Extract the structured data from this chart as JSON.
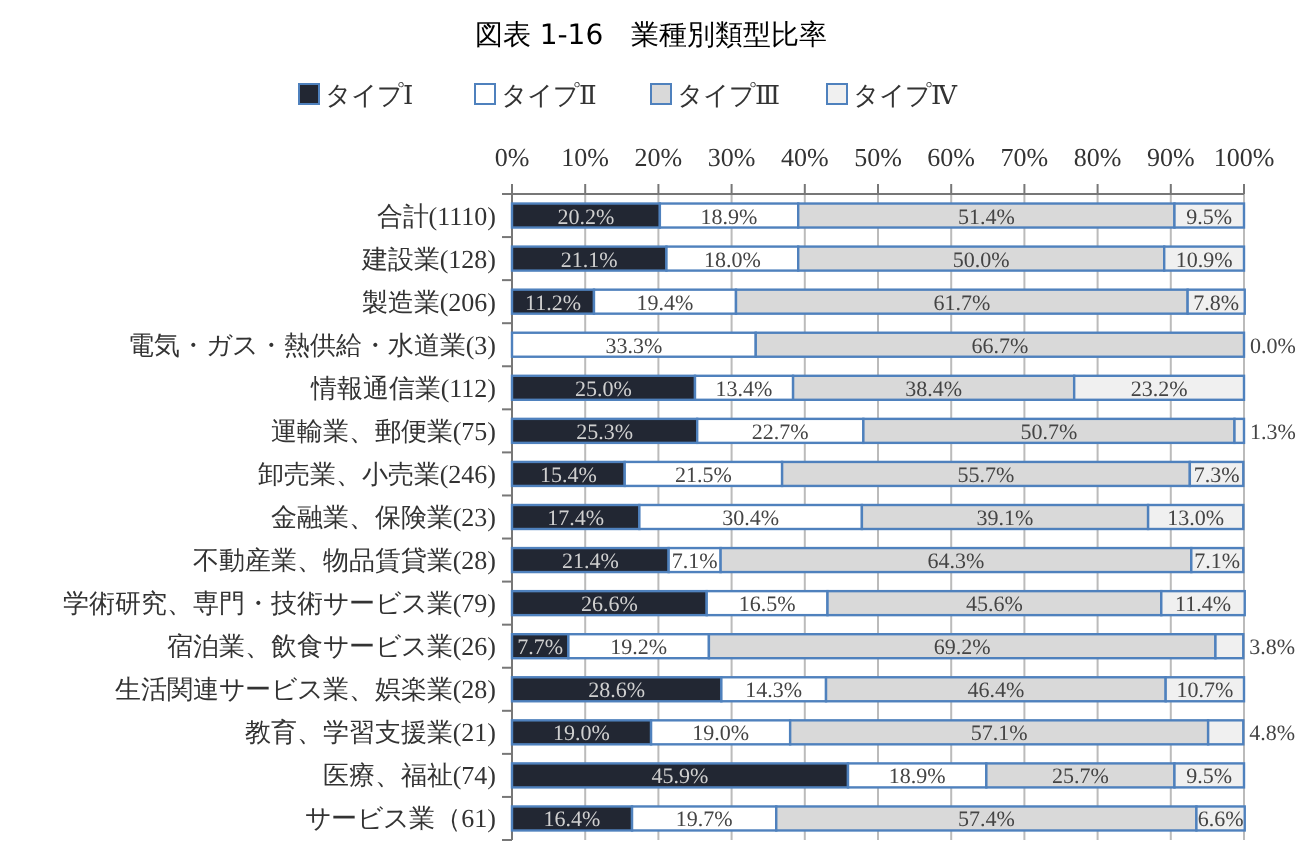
{
  "chart_data": {
    "type": "bar",
    "orientation": "horizontal",
    "stacked": true,
    "title": "図表 1-16　業種別類型比率",
    "categories": [
      "合計(1110)",
      "建設業(128)",
      "製造業(206)",
      "電気・ガス・熱供給・水道業(3)",
      "情報通信業(112)",
      "運輸業、郵便業(75)",
      "卸売業、小売業(246)",
      "金融業、保険業(23)",
      "不動産業、物品賃貸業(28)",
      "学術研究、専門・技術サービス業(79)",
      "宿泊業、飲食サービス業(26)",
      "生活関連サービス業、娯楽業(28)",
      "教育、学習支援業(21)",
      "医療、福祉(74)",
      "サービス業（61)"
    ],
    "series": [
      {
        "name": "タイプⅠ",
        "color": "#222733",
        "values": [
          20.2,
          21.1,
          11.2,
          0,
          25.0,
          25.3,
          15.4,
          17.4,
          21.4,
          26.6,
          7.7,
          28.6,
          19.0,
          45.9,
          16.4
        ],
        "value_labels": [
          "20.2%",
          "21.1%",
          "11.2%",
          null,
          "25.0%",
          "25.3%",
          "15.4%",
          "17.4%",
          "21.4%",
          "26.6%",
          "7.7%",
          "28.6%",
          "19.0%",
          "45.9%",
          "16.4%"
        ]
      },
      {
        "name": "タイプⅡ",
        "color": "#ffffff",
        "values": [
          18.9,
          18.0,
          19.4,
          33.3,
          13.4,
          22.7,
          21.5,
          30.4,
          7.1,
          16.5,
          19.2,
          14.3,
          19.0,
          18.9,
          19.7
        ],
        "value_labels": [
          "18.9%",
          "18.0%",
          "19.4%",
          "33.3%",
          "13.4%",
          "22.7%",
          "21.5%",
          "30.4%",
          "7.1%",
          "16.5%",
          "19.2%",
          "14.3%",
          "19.0%",
          "18.9%",
          "19.7%"
        ]
      },
      {
        "name": "タイプⅢ",
        "color": "#d9d9d9",
        "values": [
          51.4,
          50.0,
          61.7,
          66.7,
          38.4,
          50.7,
          55.7,
          39.1,
          64.3,
          45.6,
          69.2,
          46.4,
          57.1,
          25.7,
          57.4
        ],
        "value_labels": [
          "51.4%",
          "50.0%",
          "61.7%",
          "66.7%",
          "38.4%",
          "50.7%",
          "55.7%",
          "39.1%",
          "64.3%",
          "45.6%",
          "69.2%",
          "46.4%",
          "57.1%",
          "25.7%",
          "57.4%"
        ]
      },
      {
        "name": "タイプⅣ",
        "color": "#f0f0f0",
        "values": [
          9.5,
          10.9,
          7.8,
          0.0,
          23.2,
          1.3,
          7.3,
          13.0,
          7.1,
          11.4,
          3.8,
          10.7,
          4.8,
          9.5,
          6.6
        ],
        "value_labels": [
          "9.5%",
          "10.9%",
          "7.8%",
          "0.0%",
          "23.2%",
          "1.3%",
          "7.3%",
          "13.0%",
          "7.1%",
          "11.4%",
          "3.8%",
          "10.7%",
          "4.8%",
          "9.5%",
          "6.6%"
        ]
      }
    ],
    "xlim": [
      0,
      100
    ],
    "xticks": [
      {
        "value": 0,
        "label": "0%"
      },
      {
        "value": 10,
        "label": "10%"
      },
      {
        "value": 20,
        "label": "20%"
      },
      {
        "value": 30,
        "label": "30%"
      },
      {
        "value": 40,
        "label": "40%"
      },
      {
        "value": 50,
        "label": "50%"
      },
      {
        "value": 60,
        "label": "60%"
      },
      {
        "value": 70,
        "label": "70%"
      },
      {
        "value": 80,
        "label": "80%"
      },
      {
        "value": 90,
        "label": "90%"
      },
      {
        "value": 100,
        "label": "100%"
      }
    ],
    "grid": "x",
    "legend": "top"
  }
}
